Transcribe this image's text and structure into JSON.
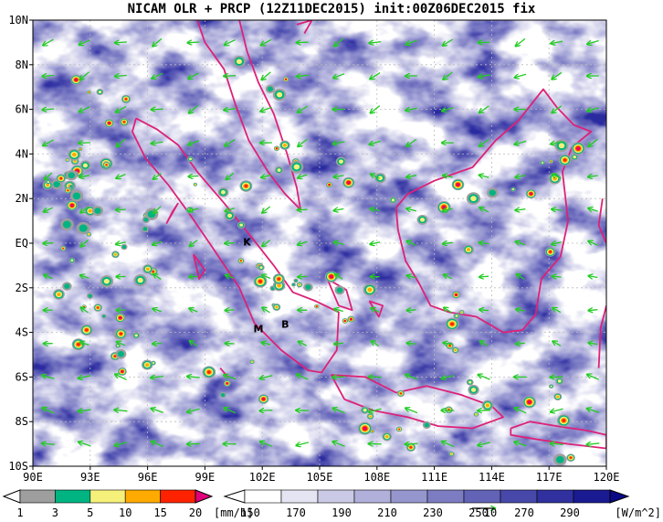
{
  "title": "NICAM OLR + PRCP (12Z11DEC2015) init:00Z06DEC2015 fix",
  "map": {
    "lon_range": [
      90,
      120
    ],
    "lat_range": [
      -10,
      10
    ],
    "lon_ticks": [
      "90E",
      "93E",
      "96E",
      "99E",
      "102E",
      "105E",
      "108E",
      "111E",
      "114E",
      "117E",
      "120E"
    ],
    "lat_ticks": [
      "10N",
      "8N",
      "6N",
      "4N",
      "2N",
      "EQ",
      "2S",
      "4S",
      "6S",
      "8S",
      "10S"
    ],
    "place_labels": [
      {
        "text": "K",
        "lon": 101.2,
        "lat": -0.1
      },
      {
        "text": "M",
        "lon": 101.8,
        "lat": -4.0
      },
      {
        "text": "B",
        "lon": 103.2,
        "lat": -3.8
      }
    ],
    "colors": {
      "coast": "#dd2277",
      "wind": "#22cc22",
      "background_low": "#1a1a8c",
      "background_high": "#ffffff"
    }
  },
  "prcp_legend": {
    "labels": [
      "1",
      "3",
      "5",
      "10",
      "15",
      "20"
    ],
    "unit": "[mm/h]",
    "colors": [
      "#ffffff",
      "#9e9e9e",
      "#00b482",
      "#f5f07a",
      "#ffaa00",
      "#ff2200",
      "#e0007a"
    ]
  },
  "olr_legend": {
    "labels": [
      "150",
      "170",
      "190",
      "210",
      "230",
      "250",
      "270",
      "290"
    ],
    "unit": "[W/m^2]",
    "vector_ref": "10",
    "colors": [
      "#ffffff",
      "#e4e4f2",
      "#cacae6",
      "#b0b0da",
      "#9696ce",
      "#7c7cc2",
      "#6262b6",
      "#4848aa",
      "#30309e",
      "#1a1a92",
      "#0a0a86"
    ]
  }
}
